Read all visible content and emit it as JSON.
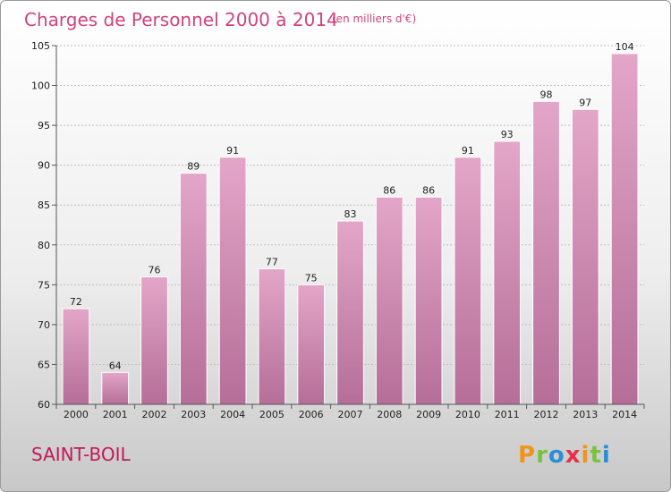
{
  "chart_data": {
    "type": "bar",
    "title": "Charges de Personnel 2000 à 2014",
    "subtitle": "(en milliers d'€)",
    "categories": [
      "2000",
      "2001",
      "2002",
      "2003",
      "2004",
      "2005",
      "2006",
      "2007",
      "2008",
      "2009",
      "2010",
      "2011",
      "2012",
      "2013",
      "2014"
    ],
    "values": [
      72,
      64,
      76,
      89,
      91,
      77,
      75,
      83,
      86,
      86,
      91,
      93,
      98,
      97,
      104
    ],
    "ylim": [
      60,
      105
    ],
    "yticks": [
      60,
      65,
      70,
      75,
      80,
      85,
      90,
      95,
      100,
      105
    ],
    "grid": "horizontal-dashed",
    "bar_color": "#e3a6c8",
    "bar_color_dark": "#b56e98"
  },
  "location": "SAINT-BOIL",
  "brand": {
    "letters": [
      "P",
      "r",
      "o",
      "x",
      "i",
      "t",
      "i"
    ],
    "colors": [
      "#f0941e",
      "#7ac143",
      "#2a8fd6",
      "#e6304a",
      "#f0941e",
      "#7ac143",
      "#2a8fd6"
    ]
  }
}
